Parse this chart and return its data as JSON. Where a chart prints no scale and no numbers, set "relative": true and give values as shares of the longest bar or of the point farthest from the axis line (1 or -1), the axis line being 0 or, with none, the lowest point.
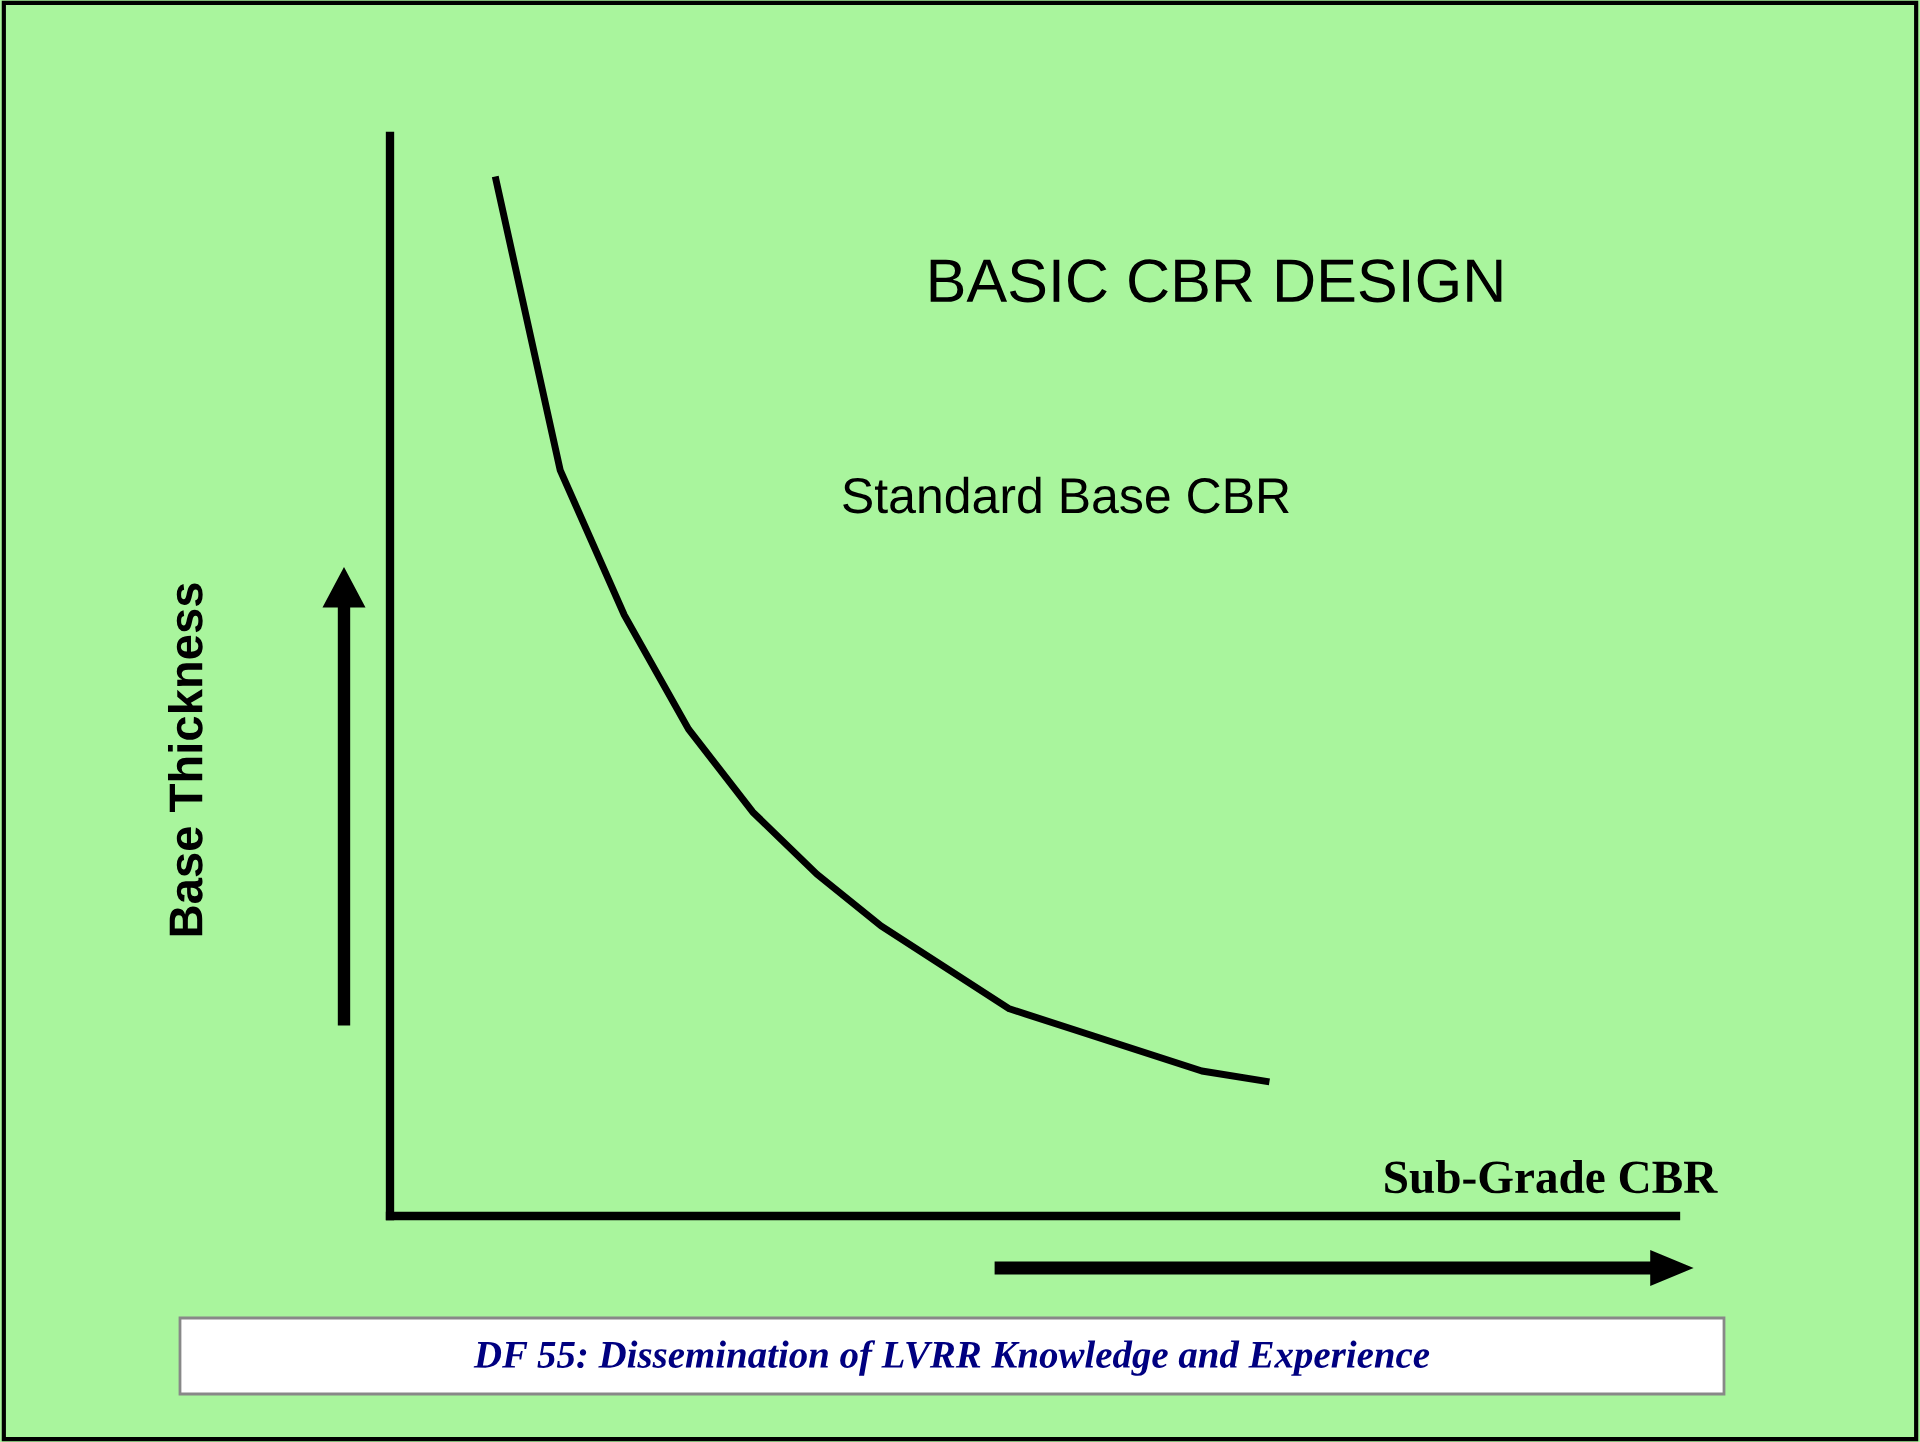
{
  "chart_data": {
    "type": "line",
    "title": "BASIC CBR DESIGN",
    "xlabel": "Sub-Grade CBR",
    "relative": true,
    "marker": "none",
    "line_style": "solid",
    "categories": [
      null,
      null,
      null,
      null,
      null,
      null,
      null,
      null,
      null,
      null,
      null,
      null,
      null
    ],
    "series": [
      {
        "name": "Standard Base CBR",
        "color": "#000000",
        "values": [
          1.0,
          0.72,
          0.58,
          0.47,
          0.39,
          0.33,
          0.28,
          0.24,
          0.2,
          0.18,
          0.16,
          0.14,
          0.13
        ]
      }
    ],
    "annotations": [
      "Base Thickness",
      "DF 55: Dissemination of LVRR Knowledge and Experience"
    ]
  }
}
